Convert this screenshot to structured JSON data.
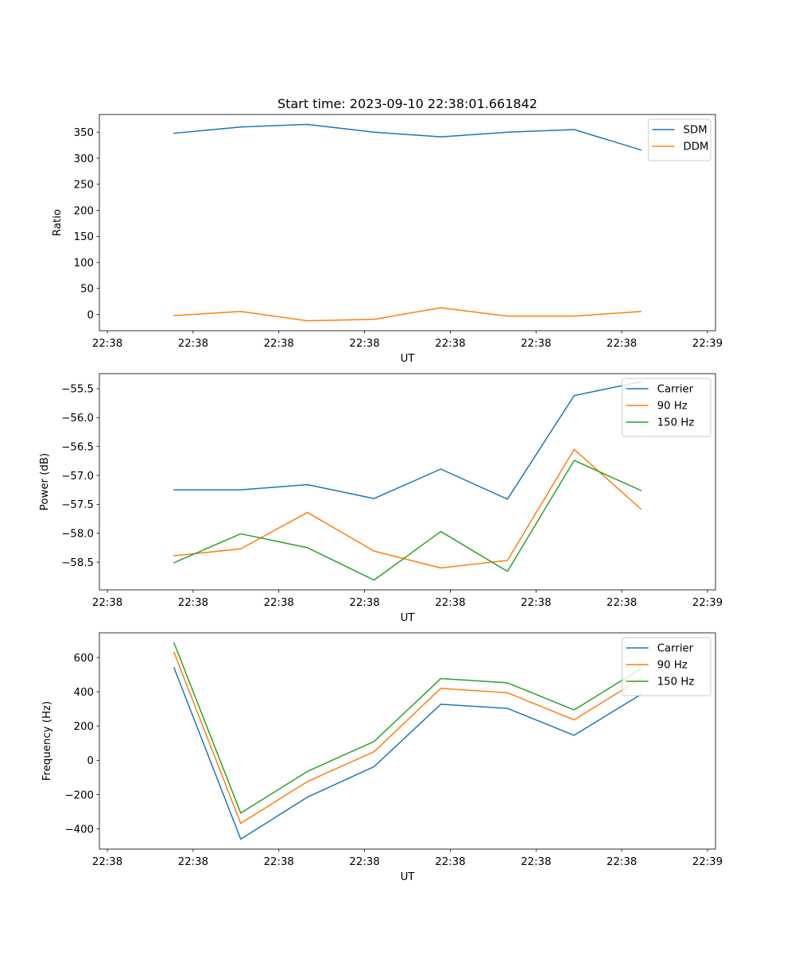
{
  "figure": {
    "title": "Start time: 2023-09-10 22:38:01.661842"
  },
  "colors": {
    "blue": "#1f77b4",
    "orange": "#ff7f0e",
    "green": "#2ca02c"
  },
  "chart_data": [
    {
      "type": "line",
      "title": "Start time: 2023-09-10 22:38:01.661842",
      "xlabel": "UT",
      "ylabel": "Ratio",
      "x_tick_labels": [
        "22:38",
        "22:38",
        "22:38",
        "22:38",
        "22:38",
        "22:38",
        "22:38"
      ],
      "x_last_tick_label": "22:39",
      "x_points": [
        1,
        2,
        3,
        4,
        5,
        6,
        7,
        8
      ],
      "xlim": [
        -0.12,
        9.12
      ],
      "ylim": [
        -31,
        384
      ],
      "yticks": [
        0,
        50,
        100,
        150,
        200,
        250,
        300,
        350
      ],
      "legend_position": "top-right",
      "series": [
        {
          "name": "SDM",
          "color": "#1f77b4",
          "values": [
            348,
            360,
            365,
            350,
            341,
            350,
            355,
            316
          ]
        },
        {
          "name": "DDM",
          "color": "#ff7f0e",
          "values": [
            -2,
            6,
            -12,
            -9,
            13,
            -3,
            -3,
            6
          ]
        }
      ]
    },
    {
      "type": "line",
      "title": "",
      "xlabel": "UT",
      "ylabel": "Power (dB)",
      "x_tick_labels": [
        "22:38",
        "22:38",
        "22:38",
        "22:38",
        "22:38",
        "22:38",
        "22:38"
      ],
      "x_last_tick_label": "22:39",
      "x_points": [
        1,
        2,
        3,
        4,
        5,
        6,
        7,
        8
      ],
      "xlim": [
        -0.12,
        9.12
      ],
      "ylim": [
        -58.98,
        -55.24
      ],
      "yticks": [
        -58.5,
        -58.0,
        -57.5,
        -57.0,
        -56.5,
        -56.0,
        -55.5
      ],
      "legend_position": "top-right",
      "series": [
        {
          "name": "Carrier",
          "color": "#1f77b4",
          "values": [
            -57.25,
            -57.25,
            -57.16,
            -57.4,
            -56.89,
            -57.41,
            -55.62,
            -55.38
          ]
        },
        {
          "name": "90 Hz",
          "color": "#ff7f0e",
          "values": [
            -58.39,
            -58.27,
            -57.64,
            -58.31,
            -58.6,
            -58.47,
            -56.55,
            -57.58
          ]
        },
        {
          "name": "150 Hz",
          "color": "#2ca02c",
          "values": [
            -58.51,
            -58.01,
            -58.25,
            -58.81,
            -57.97,
            -58.66,
            -56.74,
            -57.26
          ]
        }
      ]
    },
    {
      "type": "line",
      "title": "",
      "xlabel": "UT",
      "ylabel": "Frequency (Hz)",
      "x_tick_labels": [
        "22:38",
        "22:38",
        "22:38",
        "22:38",
        "22:38",
        "22:38",
        "22:38"
      ],
      "x_last_tick_label": "22:39",
      "x_points": [
        1,
        2,
        3,
        4,
        5,
        6,
        7,
        8
      ],
      "xlim": [
        -0.12,
        9.12
      ],
      "ylim": [
        -518,
        744
      ],
      "yticks": [
        -400,
        -200,
        0,
        200,
        400,
        600
      ],
      "legend_position": "top-right",
      "series": [
        {
          "name": "Carrier",
          "color": "#1f77b4",
          "values": [
            540,
            -460,
            -215,
            -37,
            327,
            303,
            146,
            384
          ]
        },
        {
          "name": "90 Hz",
          "color": "#ff7f0e",
          "values": [
            630,
            -368,
            -124,
            50,
            420,
            394,
            236,
            477
          ]
        },
        {
          "name": "150 Hz",
          "color": "#2ca02c",
          "values": [
            685,
            -308,
            -65,
            110,
            477,
            452,
            294,
            535
          ]
        }
      ]
    }
  ]
}
